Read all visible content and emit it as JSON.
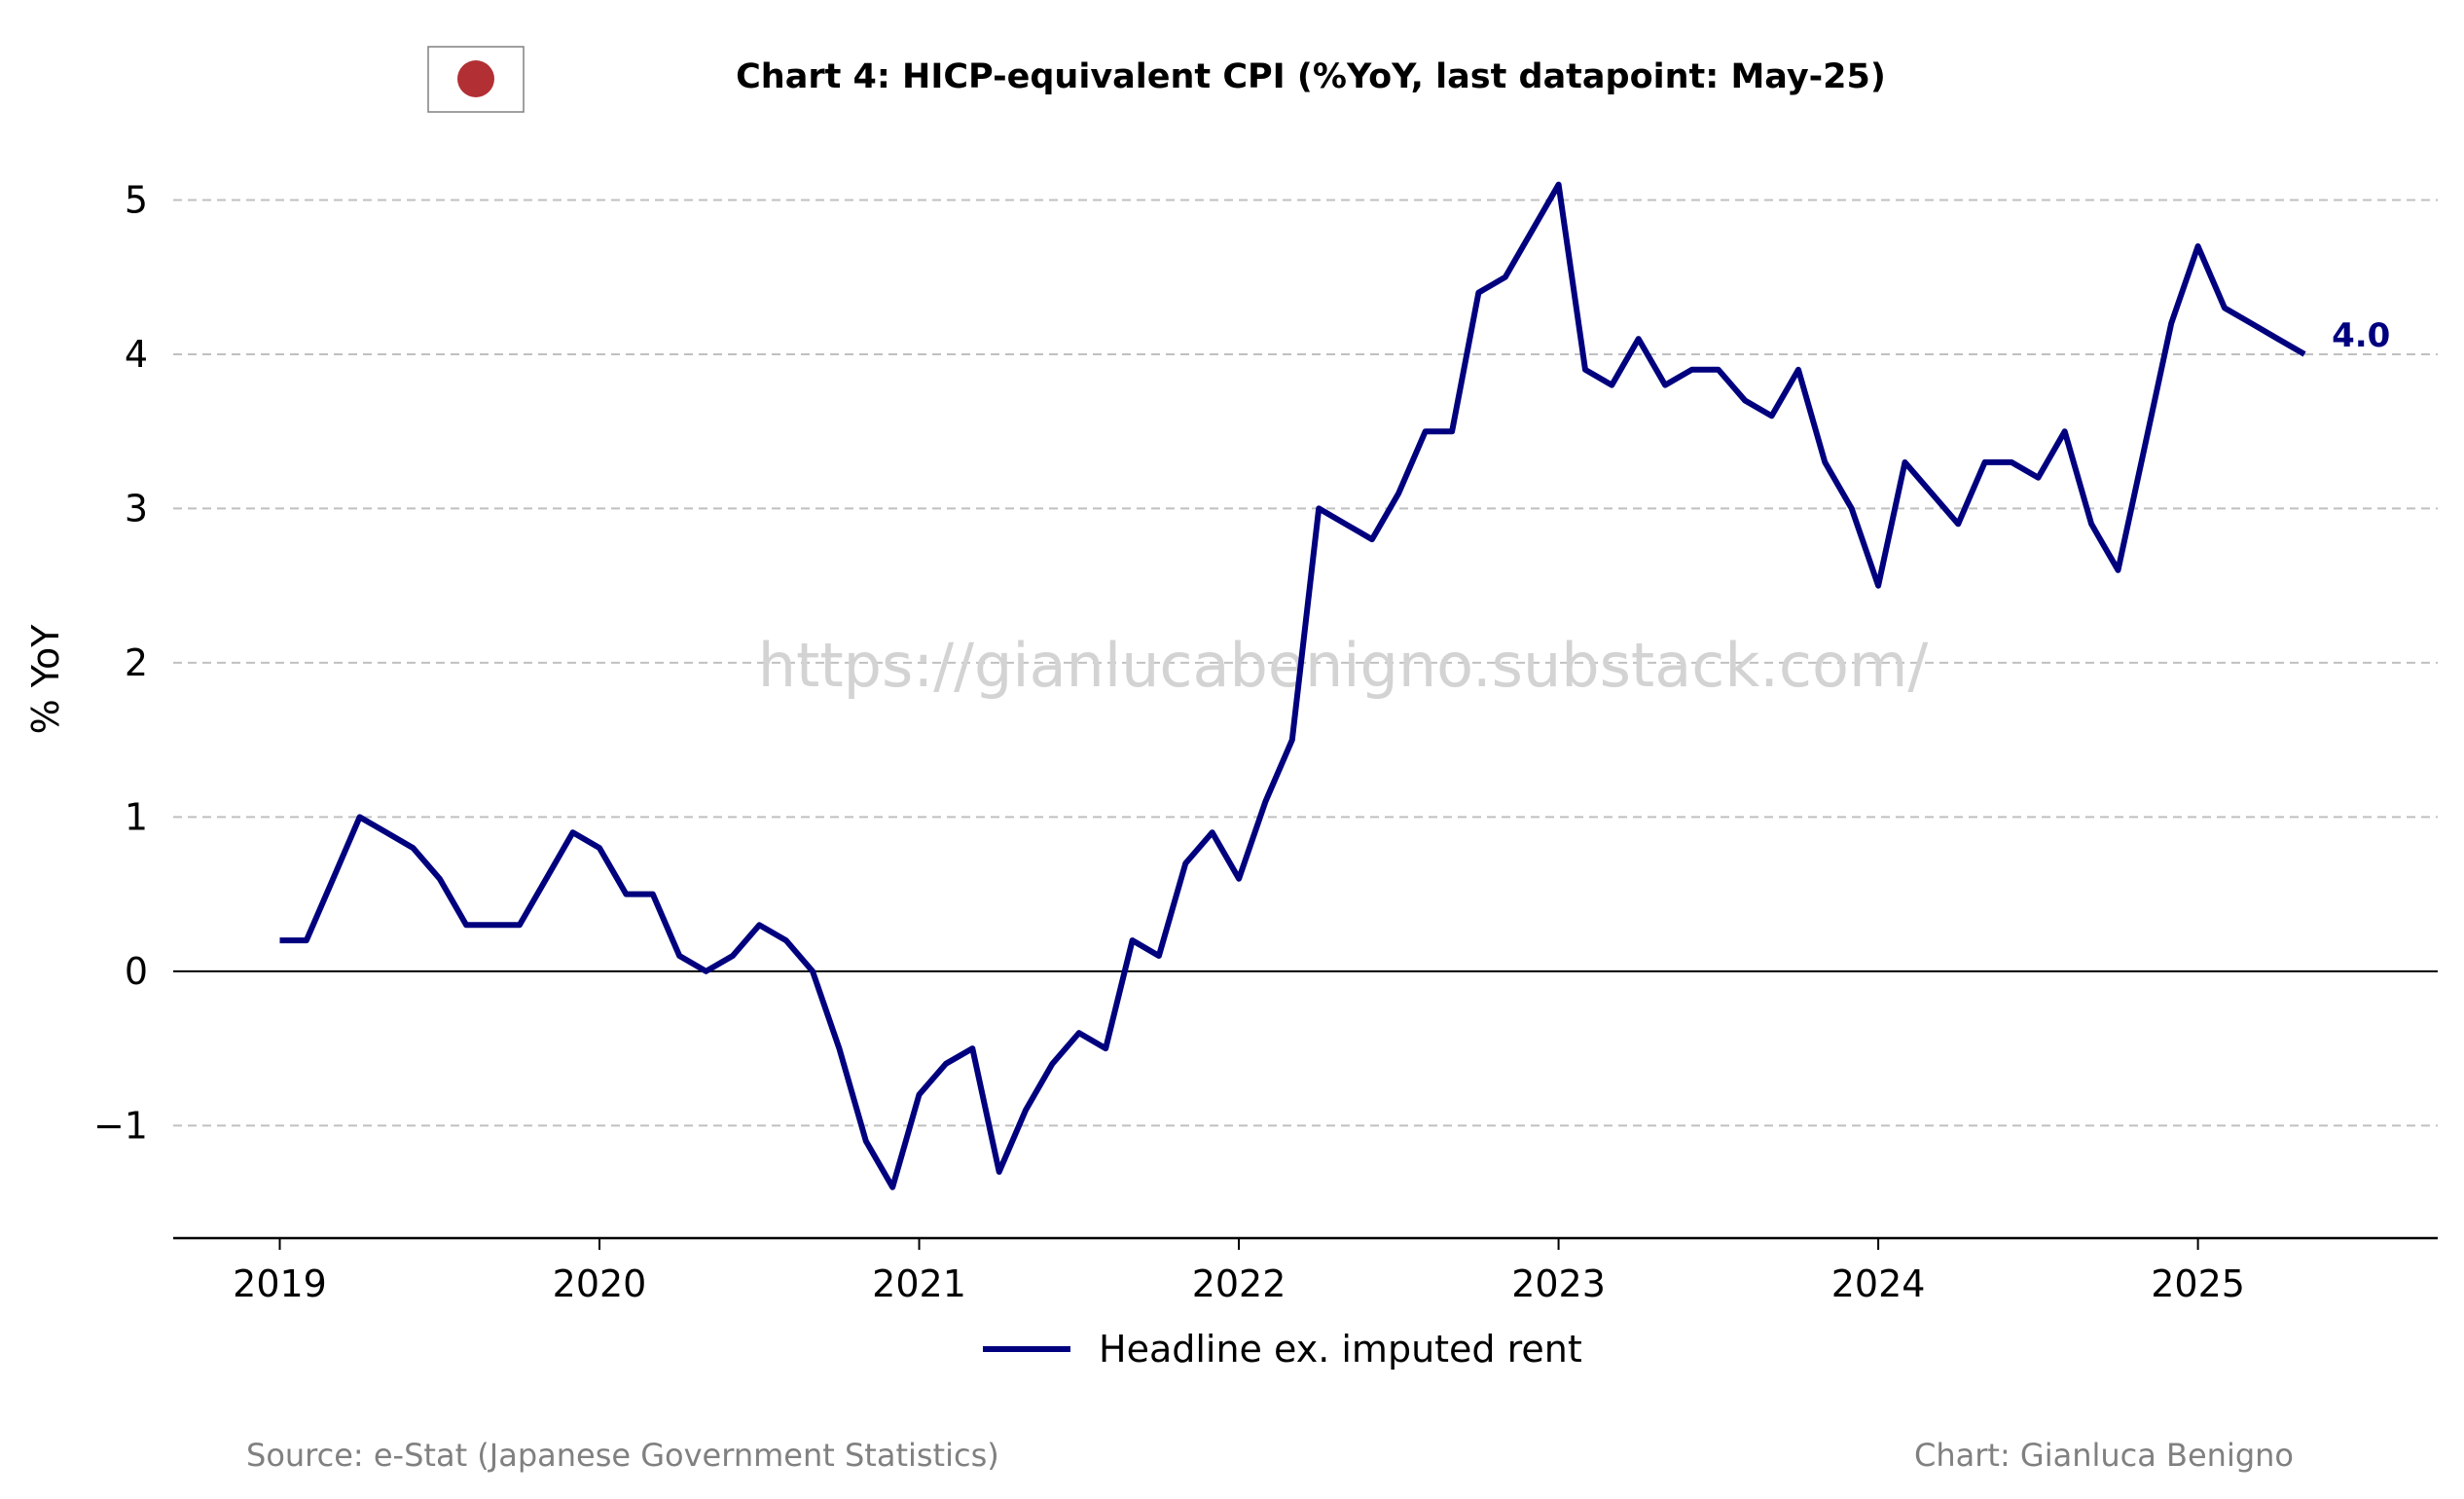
{
  "colors": {
    "series": "#00007f",
    "grid": "#c0c0c0",
    "flag_red": "#b22f34",
    "footer": "#808080",
    "watermark": "#d3d3d3"
  },
  "icons": {
    "flag": "japan-flag-icon"
  },
  "chart_data": {
    "type": "line",
    "title": "Chart 4: HICP-equivalent CPI (%YoY, last datapoint: May-25)",
    "xlabel": "",
    "ylabel": "% YoY",
    "xlim": [
      "2018-09",
      "2025-10"
    ],
    "ylim": [
      -1.73,
      5.35
    ],
    "grid": "y-dashed",
    "legend_position": "bottom-center",
    "x_ticks": [
      "2019",
      "2020",
      "2021",
      "2022",
      "2023",
      "2024",
      "2025"
    ],
    "y_ticks": [
      "−1",
      "0",
      "1",
      "2",
      "3",
      "4",
      "5"
    ],
    "y_tick_values": [
      -1,
      0,
      1,
      2,
      3,
      4,
      5
    ],
    "x_start": "2019-01",
    "x_end": "2025-05",
    "series": [
      {
        "name": "Headline ex. imputed rent",
        "values": [
          0.2,
          0.2,
          0.6,
          1.0,
          0.9,
          0.8,
          0.6,
          0.3,
          0.3,
          0.3,
          0.6,
          0.9,
          0.8,
          0.5,
          0.5,
          0.1,
          0.0,
          0.1,
          0.3,
          0.2,
          0.0,
          -0.5,
          -1.1,
          -1.4,
          -0.8,
          -0.6,
          -0.5,
          -1.3,
          -0.9,
          -0.6,
          -0.4,
          -0.5,
          0.2,
          0.1,
          0.7,
          0.9,
          0.6,
          1.1,
          1.5,
          3.0,
          2.9,
          2.8,
          3.1,
          3.5,
          3.5,
          4.4,
          4.5,
          4.8,
          5.1,
          3.9,
          3.8,
          4.1,
          3.8,
          3.9,
          3.9,
          3.7,
          3.6,
          3.9,
          3.3,
          3.0,
          2.5,
          3.3,
          3.1,
          2.9,
          3.3,
          3.3,
          3.2,
          3.5,
          2.9,
          2.6,
          3.4,
          4.2,
          4.7,
          4.3,
          4.2,
          4.1,
          4.0
        ]
      }
    ],
    "end_label": "4.0"
  },
  "watermark": "https://gianlucabenigno.substack.com/",
  "footer": {
    "source": "Source: e-Stat (Japanese Government Statistics)",
    "credit": "Chart: Gianluca Benigno"
  }
}
